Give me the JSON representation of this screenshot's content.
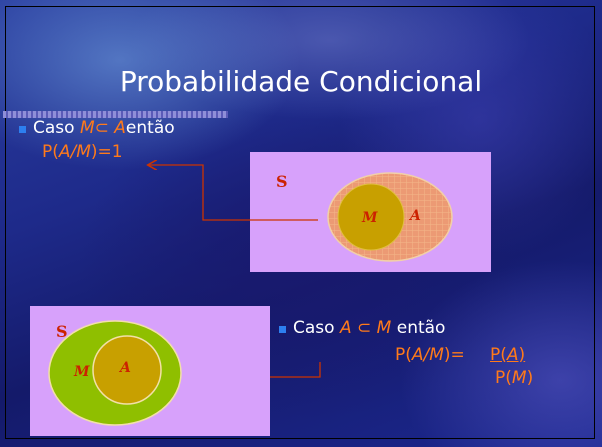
{
  "title": "Probabilidade Condicional",
  "top_bullet": {
    "caso": "Caso",
    "set_a": "M",
    "subset_symbol": "⊂",
    "set_b": "A",
    "entao": "então",
    "result_prefix": "P(",
    "result_expr": "A/M",
    "result_suffix": ")=1"
  },
  "diagram_top": {
    "universe_label": "S",
    "inner_label": "M",
    "outer_label": "A"
  },
  "diagram_bottom": {
    "universe_label": "S",
    "outer_label": "M",
    "inner_label": "A"
  },
  "bottom_bullet": {
    "caso": "Caso",
    "set_a": "A",
    "subset_symbol": "⊂",
    "set_b": "M",
    "entao": "então",
    "lhs_prefix": "P(",
    "lhs_expr": "A/M",
    "lhs_suffix": ")=",
    "numerator_prefix": "P(",
    "numerator_var": "A",
    "numerator_suffix": ")",
    "denominator_prefix": "P(",
    "denominator_var": "M",
    "denominator_suffix": ")"
  },
  "colors": {
    "text_white": "#ffffff",
    "accent_orange": "#ff7a1a",
    "panel_violet": "#d7a1fb",
    "bullet_blue": "#2d7ff0",
    "set_a_fill_top": "#ec9a74",
    "set_m_fill_top": "#c8a000",
    "set_m_fill_bottom": "#8fbf00",
    "set_a_fill_bottom": "#c8a000",
    "label_red": "#cc2200"
  }
}
